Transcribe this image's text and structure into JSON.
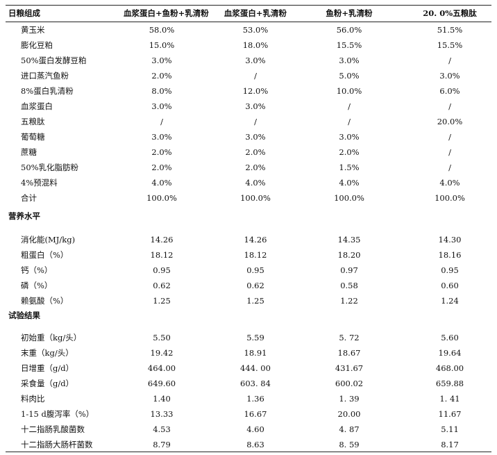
{
  "table": {
    "headers": [
      "日粮组成",
      "血浆蛋白+鱼粉+乳清粉",
      "血浆蛋白+乳清粉",
      "鱼粉+乳清粉",
      "20. 0%五粮肽"
    ],
    "composition": [
      [
        "黄玉米",
        "58.0%",
        "53.0%",
        "56.0%",
        "51.5%"
      ],
      [
        "膨化豆粕",
        "15.0%",
        "18.0%",
        "15.5%",
        "15.5%"
      ],
      [
        "50%蛋白发酵豆粕",
        "3.0%",
        "3.0%",
        "3.0%",
        "/"
      ],
      [
        "进口蒸汽鱼粉",
        "2.0%",
        "/",
        "5.0%",
        "3.0%"
      ],
      [
        "8%蛋白乳清粉",
        "8.0%",
        "12.0%",
        "10.0%",
        "6.0%"
      ],
      [
        "血浆蛋白",
        "3.0%",
        "3.0%",
        "/",
        "/"
      ],
      [
        "五粮肽",
        "/",
        "/",
        "/",
        "20.0%"
      ],
      [
        "葡萄糖",
        "3.0%",
        "3.0%",
        "3.0%",
        "/"
      ],
      [
        "蔗糖",
        "2.0%",
        "2.0%",
        "2.0%",
        "/"
      ],
      [
        "50%乳化脂肪粉",
        "2.0%",
        "2.0%",
        "1.5%",
        "/"
      ],
      [
        "4%预混料",
        "4.0%",
        "4.0%",
        "4.0%",
        "4.0%"
      ],
      [
        "合计",
        "100.0%",
        "100.0%",
        "100.0%",
        "100.0%"
      ]
    ],
    "nutrition_title": "营养水平",
    "nutrition": [
      [
        "消化能(MJ/kg)",
        "14.26",
        "14.26",
        "14.35",
        "14.30"
      ],
      [
        "粗蛋白（%）",
        "18.12",
        "18.12",
        "18.20",
        "18.16"
      ],
      [
        "钙（%）",
        "0.95",
        "0.95",
        "0.97",
        "0.95"
      ],
      [
        "磷（%）",
        "0.62",
        "0.62",
        "0.58",
        "0.60"
      ],
      [
        "赖氨酸（%）",
        "1.25",
        "1.25",
        "1.22",
        "1.24"
      ]
    ],
    "results_title": "试验结果",
    "results": [
      [
        "初始重（kg/头）",
        "5.50",
        "5.59",
        "5. 72",
        "5.60"
      ],
      [
        "末重（kg/头）",
        "19.42",
        "18.91",
        "18.67",
        "19.64"
      ],
      [
        "日增重（g/d）",
        "464.00",
        "444. 00",
        "431.67",
        "468.00"
      ],
      [
        "采食量（g/d）",
        "649.60",
        "603. 84",
        "600.02",
        "659.88"
      ],
      [
        "料肉比",
        "1.40",
        "1.36",
        "1. 39",
        "1. 41"
      ],
      [
        "1-15 d腹泻率（%）",
        "13.33",
        "16.67",
        "20.00",
        "11.67"
      ],
      [
        "十二指肠乳酸菌数",
        "4.53",
        "4.60",
        "4. 87",
        "5.11"
      ],
      [
        "十二指肠大肠杆菌数",
        "8.79",
        "8.63",
        "8. 59",
        "8.17"
      ]
    ]
  }
}
